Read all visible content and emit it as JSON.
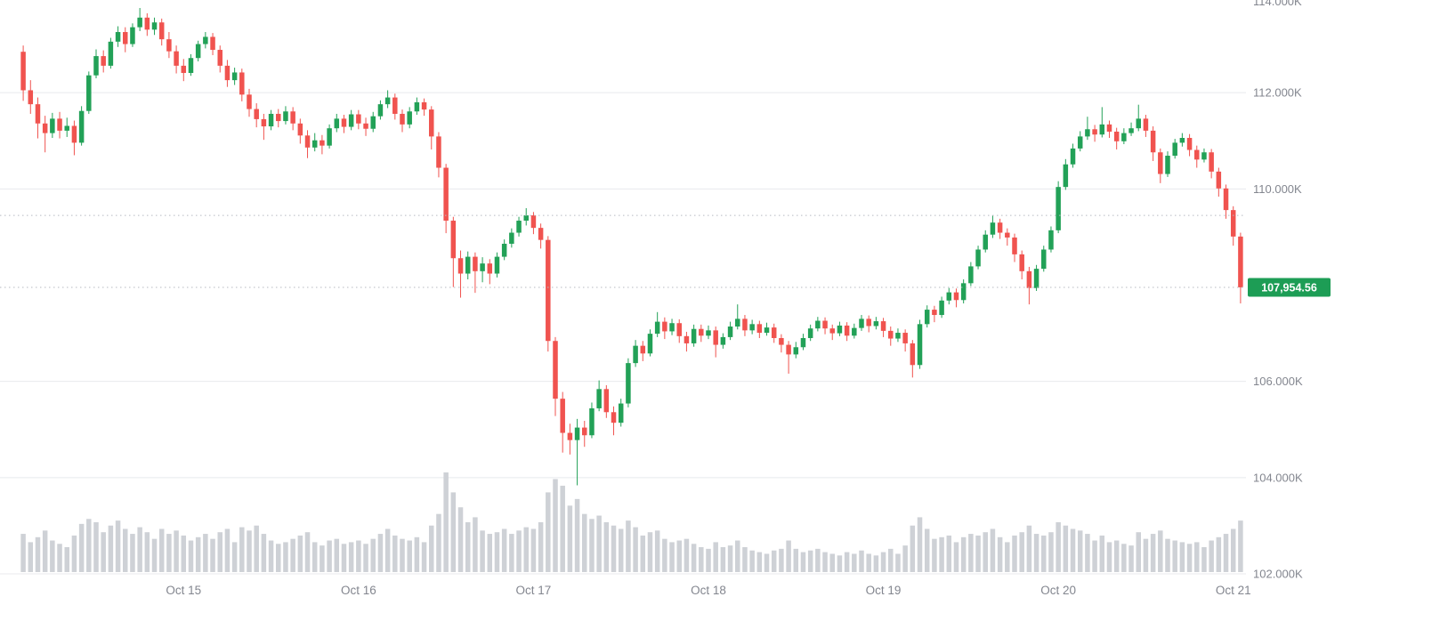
{
  "chart_data": {
    "type": "candlestick",
    "title": "",
    "interval": "1h",
    "last_price": 107954.56,
    "last_price_label": "107,954.56",
    "y_axis": {
      "min": 102000,
      "max": 114000,
      "tick_step": 2000
    },
    "y_ticks": [
      {
        "price": 114000,
        "label": "114.000K"
      },
      {
        "price": 112000,
        "label": "112.000K"
      },
      {
        "price": 110000,
        "label": "110.000K"
      },
      {
        "price": 106000,
        "label": "106.000K"
      },
      {
        "price": 104000,
        "label": "104.000K"
      },
      {
        "price": 102000,
        "label": "102.000K"
      }
    ],
    "x_ticks": [
      {
        "candle_index": 22,
        "label": "Oct 15"
      },
      {
        "candle_index": 46,
        "label": "Oct 16"
      },
      {
        "candle_index": 70,
        "label": "Oct 17"
      },
      {
        "candle_index": 94,
        "label": "Oct 18"
      },
      {
        "candle_index": 118,
        "label": "Oct 19"
      },
      {
        "candle_index": 142,
        "label": "Oct 20"
      },
      {
        "candle_index": 166,
        "label": "Oct 21"
      }
    ],
    "dashed_levels": [
      {
        "price": 109450,
        "role": "reference-level"
      },
      {
        "price": 107954.56,
        "role": "last-price-line"
      }
    ],
    "colors": {
      "up": "#22a157",
      "down": "#f0534f",
      "volume": "#ced1d6",
      "grid": "#e8eaed",
      "dashed": "#b6bac2",
      "axis_text": "#83868f",
      "price_badge_bg": "#1d9d55",
      "price_badge_text": "#ffffff",
      "background": "#ffffff"
    },
    "legend_position": "none",
    "grid": "horizontal-only",
    "candles_format": [
      "open",
      "high",
      "low",
      "close",
      "volume"
    ],
    "candles": [
      [
        112850,
        112980,
        111830,
        112050,
        230
      ],
      [
        112050,
        112260,
        111560,
        111760,
        180
      ],
      [
        111760,
        111900,
        111050,
        111360,
        210
      ],
      [
        111360,
        111520,
        110760,
        111160,
        250
      ],
      [
        111160,
        111580,
        111060,
        111460,
        190
      ],
      [
        111460,
        111600,
        111050,
        111210,
        170
      ],
      [
        111210,
        111480,
        111080,
        111310,
        150
      ],
      [
        111310,
        111420,
        110700,
        110960,
        220
      ],
      [
        110960,
        111720,
        110900,
        111620,
        290
      ],
      [
        111620,
        112440,
        111560,
        112360,
        320
      ],
      [
        112360,
        112900,
        112300,
        112760,
        300
      ],
      [
        112760,
        112880,
        112420,
        112560,
        240
      ],
      [
        112560,
        113140,
        112500,
        113060,
        280
      ],
      [
        113060,
        113380,
        112950,
        113260,
        310
      ],
      [
        113260,
        113360,
        112840,
        113010,
        260
      ],
      [
        113010,
        113440,
        112950,
        113360,
        230
      ],
      [
        113360,
        113760,
        113280,
        113560,
        270
      ],
      [
        113560,
        113650,
        113180,
        113310,
        240
      ],
      [
        113310,
        113560,
        113200,
        113460,
        200
      ],
      [
        113460,
        113540,
        112980,
        113110,
        260
      ],
      [
        113110,
        113260,
        112720,
        112860,
        230
      ],
      [
        112860,
        112980,
        112400,
        112560,
        250
      ],
      [
        112560,
        112700,
        112240,
        112410,
        220
      ],
      [
        112410,
        112800,
        112350,
        112720,
        190
      ],
      [
        112720,
        113080,
        112650,
        113010,
        210
      ],
      [
        113010,
        113260,
        112920,
        113160,
        230
      ],
      [
        113160,
        113240,
        112780,
        112890,
        200
      ],
      [
        112890,
        112980,
        112420,
        112560,
        240
      ],
      [
        112560,
        112680,
        112120,
        112260,
        260
      ],
      [
        112260,
        112520,
        112160,
        112420,
        180
      ],
      [
        112420,
        112500,
        111820,
        111960,
        270
      ],
      [
        111960,
        112080,
        111500,
        111660,
        250
      ],
      [
        111660,
        111780,
        111280,
        111450,
        280
      ],
      [
        111450,
        111560,
        111020,
        111300,
        230
      ],
      [
        111300,
        111640,
        111220,
        111560,
        190
      ],
      [
        111560,
        111660,
        111280,
        111410,
        170
      ],
      [
        111410,
        111720,
        111340,
        111610,
        180
      ],
      [
        111610,
        111700,
        111220,
        111360,
        200
      ],
      [
        111360,
        111460,
        110940,
        111110,
        220
      ],
      [
        111110,
        111220,
        110640,
        110860,
        240
      ],
      [
        110860,
        111160,
        110780,
        111010,
        180
      ],
      [
        111010,
        111120,
        110720,
        110900,
        160
      ],
      [
        110900,
        111340,
        110840,
        111260,
        190
      ],
      [
        111260,
        111560,
        111180,
        111460,
        200
      ],
      [
        111460,
        111540,
        111160,
        111290,
        170
      ],
      [
        111290,
        111640,
        111220,
        111550,
        180
      ],
      [
        111550,
        111640,
        111240,
        111360,
        190
      ],
      [
        111360,
        111480,
        111100,
        111250,
        170
      ],
      [
        111250,
        111600,
        111180,
        111510,
        200
      ],
      [
        111510,
        111840,
        111440,
        111760,
        230
      ],
      [
        111760,
        112050,
        111680,
        111900,
        260
      ],
      [
        111900,
        111980,
        111440,
        111560,
        220
      ],
      [
        111560,
        111650,
        111180,
        111340,
        200
      ],
      [
        111340,
        111700,
        111260,
        111610,
        190
      ],
      [
        111610,
        111900,
        111540,
        111800,
        210
      ],
      [
        111800,
        111880,
        111520,
        111650,
        180
      ],
      [
        111650,
        111720,
        110820,
        111090,
        280
      ],
      [
        111090,
        111180,
        110240,
        110440,
        350
      ],
      [
        110440,
        110520,
        109080,
        109340,
        600
      ],
      [
        109340,
        109420,
        107960,
        108560,
        480
      ],
      [
        108560,
        108720,
        107740,
        108240,
        390
      ],
      [
        108240,
        108700,
        108120,
        108590,
        300
      ],
      [
        108590,
        108680,
        107840,
        108290,
        330
      ],
      [
        108290,
        108580,
        108060,
        108450,
        250
      ],
      [
        108450,
        108540,
        108020,
        108240,
        230
      ],
      [
        108240,
        108680,
        108160,
        108590,
        240
      ],
      [
        108590,
        108950,
        108520,
        108860,
        260
      ],
      [
        108860,
        109180,
        108780,
        109090,
        230
      ],
      [
        109090,
        109420,
        109010,
        109340,
        250
      ],
      [
        109340,
        109600,
        109240,
        109450,
        270
      ],
      [
        109450,
        109520,
        109060,
        109190,
        260
      ],
      [
        109190,
        109280,
        108760,
        108940,
        300
      ],
      [
        108940,
        109020,
        106620,
        106840,
        480
      ],
      [
        106840,
        106920,
        105280,
        105640,
        560
      ],
      [
        105640,
        105780,
        104520,
        104930,
        520
      ],
      [
        104930,
        105120,
        104480,
        104780,
        400
      ],
      [
        104780,
        105220,
        103840,
        105040,
        440
      ],
      [
        105040,
        105180,
        104640,
        104880,
        350
      ],
      [
        104880,
        105560,
        104820,
        105440,
        320
      ],
      [
        105440,
        106020,
        105380,
        105840,
        340
      ],
      [
        105840,
        105920,
        105240,
        105360,
        300
      ],
      [
        105360,
        105480,
        104880,
        105140,
        280
      ],
      [
        105140,
        105640,
        105060,
        105540,
        260
      ],
      [
        105540,
        106480,
        105460,
        106380,
        310
      ],
      [
        106380,
        106860,
        106300,
        106740,
        270
      ],
      [
        106740,
        106840,
        106420,
        106580,
        220
      ],
      [
        106580,
        107080,
        106520,
        106990,
        240
      ],
      [
        106990,
        107440,
        106920,
        107240,
        250
      ],
      [
        107240,
        107330,
        106880,
        107040,
        200
      ],
      [
        107040,
        107300,
        106960,
        107210,
        180
      ],
      [
        107210,
        107290,
        106800,
        106940,
        190
      ],
      [
        106940,
        107030,
        106620,
        106790,
        200
      ],
      [
        106790,
        107180,
        106720,
        107090,
        170
      ],
      [
        107090,
        107180,
        106820,
        106950,
        150
      ],
      [
        106950,
        107160,
        106880,
        107060,
        140
      ],
      [
        107060,
        107140,
        106500,
        106760,
        180
      ],
      [
        106760,
        107000,
        106680,
        106920,
        150
      ],
      [
        106920,
        107240,
        106860,
        107140,
        160
      ],
      [
        107140,
        107600,
        107080,
        107300,
        190
      ],
      [
        107300,
        107380,
        106940,
        107060,
        150
      ],
      [
        107060,
        107280,
        106980,
        107190,
        130
      ],
      [
        107190,
        107260,
        106900,
        107010,
        120
      ],
      [
        107010,
        107220,
        106950,
        107120,
        110
      ],
      [
        107120,
        107200,
        106800,
        106900,
        130
      ],
      [
        106900,
        106980,
        106600,
        106760,
        140
      ],
      [
        106760,
        106840,
        106160,
        106560,
        190
      ],
      [
        106560,
        106820,
        106480,
        106710,
        140
      ],
      [
        106710,
        106990,
        106650,
        106900,
        120
      ],
      [
        106900,
        107180,
        106840,
        107100,
        130
      ],
      [
        107100,
        107340,
        107040,
        107260,
        140
      ],
      [
        107260,
        107330,
        106980,
        107100,
        120
      ],
      [
        107100,
        107180,
        106860,
        107000,
        110
      ],
      [
        107000,
        107240,
        106940,
        107160,
        100
      ],
      [
        107160,
        107230,
        106840,
        106950,
        120
      ],
      [
        106950,
        107200,
        106890,
        107110,
        110
      ],
      [
        107110,
        107380,
        107050,
        107300,
        130
      ],
      [
        107300,
        107370,
        107020,
        107150,
        110
      ],
      [
        107150,
        107340,
        107080,
        107250,
        100
      ],
      [
        107250,
        107320,
        106920,
        107050,
        120
      ],
      [
        107050,
        107140,
        106740,
        106890,
        140
      ],
      [
        106890,
        107100,
        106820,
        107010,
        110
      ],
      [
        107010,
        107080,
        106620,
        106790,
        160
      ],
      [
        106790,
        106860,
        106080,
        106340,
        280
      ],
      [
        106340,
        107280,
        106260,
        107190,
        330
      ],
      [
        107190,
        107580,
        107120,
        107490,
        260
      ],
      [
        107490,
        107570,
        107230,
        107380,
        200
      ],
      [
        107380,
        107760,
        107320,
        107680,
        210
      ],
      [
        107680,
        107940,
        107600,
        107850,
        220
      ],
      [
        107850,
        107930,
        107540,
        107690,
        180
      ],
      [
        107690,
        108120,
        107620,
        108040,
        210
      ],
      [
        108040,
        108480,
        107980,
        108390,
        230
      ],
      [
        108390,
        108820,
        108330,
        108740,
        220
      ],
      [
        108740,
        109140,
        108680,
        109050,
        240
      ],
      [
        109050,
        109450,
        108980,
        109300,
        260
      ],
      [
        109300,
        109380,
        108960,
        109090,
        210
      ],
      [
        109090,
        109180,
        108820,
        108990,
        180
      ],
      [
        108990,
        109070,
        108480,
        108640,
        220
      ],
      [
        108640,
        108720,
        108120,
        108290,
        240
      ],
      [
        108290,
        108380,
        107600,
        107940,
        280
      ],
      [
        107940,
        108420,
        107880,
        108340,
        230
      ],
      [
        108340,
        108820,
        108280,
        108740,
        220
      ],
      [
        108740,
        109220,
        108680,
        109140,
        240
      ],
      [
        109140,
        110160,
        109080,
        110040,
        300
      ],
      [
        110040,
        110620,
        109980,
        110510,
        280
      ],
      [
        110510,
        110940,
        110440,
        110840,
        260
      ],
      [
        110840,
        111200,
        110780,
        111090,
        250
      ],
      [
        111090,
        111500,
        111020,
        111240,
        230
      ],
      [
        111240,
        111330,
        110980,
        111130,
        190
      ],
      [
        111130,
        111700,
        111070,
        111340,
        220
      ],
      [
        111340,
        111420,
        111060,
        111190,
        180
      ],
      [
        111190,
        111270,
        110820,
        110990,
        190
      ],
      [
        110990,
        111260,
        110930,
        111160,
        170
      ],
      [
        111160,
        111380,
        111100,
        111260,
        160
      ],
      [
        111260,
        111750,
        111200,
        111460,
        240
      ],
      [
        111460,
        111540,
        111080,
        111210,
        200
      ],
      [
        111210,
        111300,
        110580,
        110760,
        230
      ],
      [
        110760,
        110840,
        110120,
        110310,
        250
      ],
      [
        110310,
        110780,
        110250,
        110690,
        200
      ],
      [
        110690,
        111040,
        110630,
        110960,
        190
      ],
      [
        110960,
        111160,
        110880,
        111060,
        180
      ],
      [
        111060,
        111140,
        110680,
        110810,
        170
      ],
      [
        110810,
        110900,
        110440,
        110610,
        180
      ],
      [
        110610,
        110840,
        110550,
        110760,
        150
      ],
      [
        110760,
        110830,
        110220,
        110360,
        190
      ],
      [
        110360,
        110440,
        109840,
        110010,
        210
      ],
      [
        110010,
        110090,
        109380,
        109560,
        230
      ],
      [
        109560,
        109640,
        108820,
        109010,
        260
      ],
      [
        109010,
        109090,
        107620,
        107954.56,
        310
      ]
    ]
  }
}
